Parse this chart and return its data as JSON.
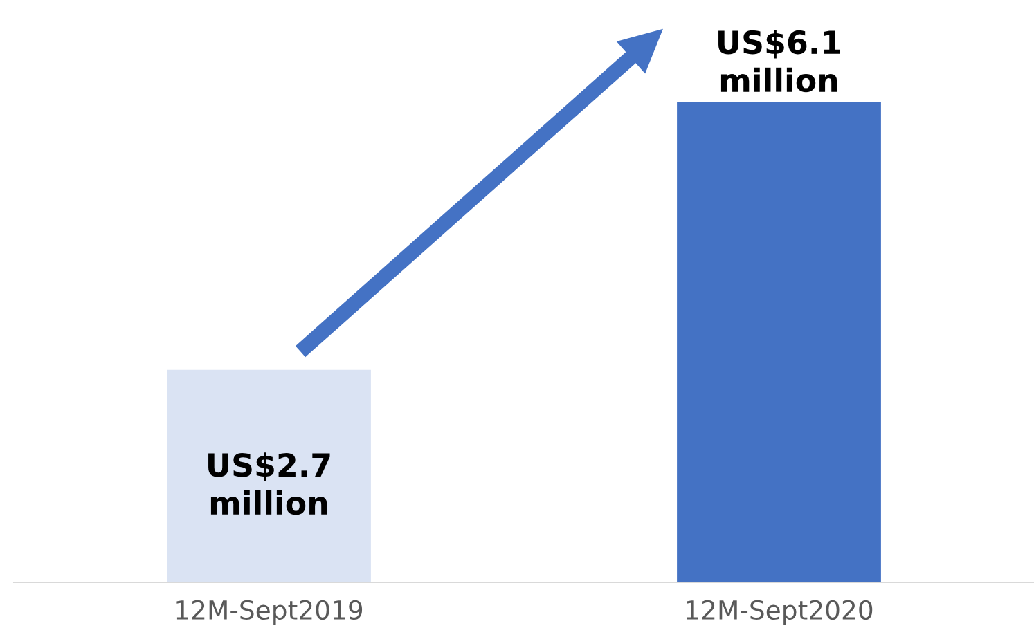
{
  "chart_data": {
    "type": "bar",
    "categories": [
      "12M-Sept2019",
      "12M-Sept2020"
    ],
    "values": [
      2.7,
      6.1
    ],
    "colors": [
      "#dae3f3",
      "#4472c4"
    ],
    "value_labels": [
      "US$2.7\nmillion",
      "US$6.1\nmillion"
    ],
    "tick_labels": "x",
    "grid": false,
    "legend": false
  }
}
